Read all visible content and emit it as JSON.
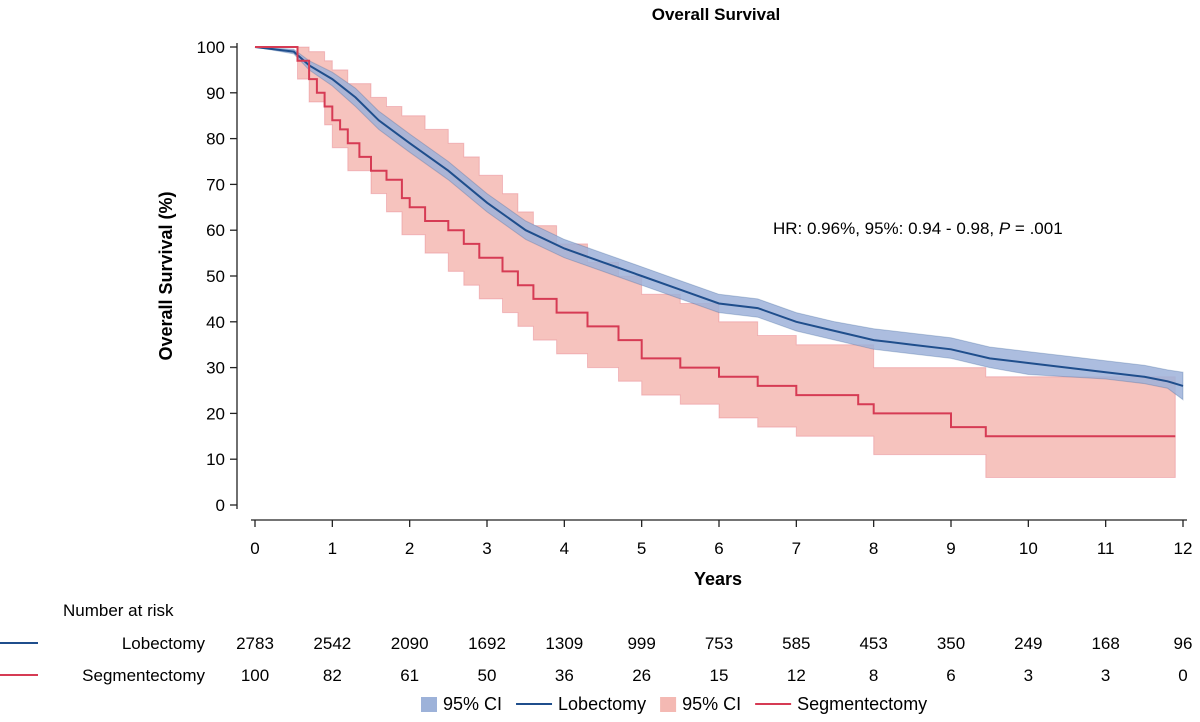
{
  "chart_data": {
    "type": "line",
    "title": "Overall Survival",
    "xlabel": "Years",
    "ylabel": "Overall Survival (%)",
    "xlim": [
      0,
      12
    ],
    "ylim": [
      0,
      100
    ],
    "xticks": [
      0,
      1,
      2,
      3,
      4,
      5,
      6,
      7,
      8,
      9,
      10,
      11,
      12
    ],
    "yticks": [
      0,
      10,
      20,
      30,
      40,
      50,
      60,
      70,
      80,
      90,
      100
    ],
    "grid": false,
    "annotation": {
      "prefix": "HR: 0.96%, 95%: 0.94 - 0.98, ",
      "p_symbol": "P",
      "suffix": " = .001"
    },
    "series": [
      {
        "name": "Lobectomy",
        "color": "#1f4e8c",
        "ci_color": "#9db2d9",
        "step": false,
        "points": [
          [
            0,
            100
          ],
          [
            0.5,
            99
          ],
          [
            0.7,
            96
          ],
          [
            1,
            93
          ],
          [
            1.3,
            89
          ],
          [
            1.6,
            84
          ],
          [
            2,
            79
          ],
          [
            2.5,
            73
          ],
          [
            3,
            66
          ],
          [
            3.5,
            60
          ],
          [
            4,
            56
          ],
          [
            4.5,
            53
          ],
          [
            5,
            50
          ],
          [
            5.5,
            47
          ],
          [
            6,
            44
          ],
          [
            6.5,
            43
          ],
          [
            7,
            40
          ],
          [
            7.5,
            38
          ],
          [
            8,
            36
          ],
          [
            8.5,
            35
          ],
          [
            9,
            34
          ],
          [
            9.5,
            32
          ],
          [
            10,
            31
          ],
          [
            10.5,
            30
          ],
          [
            11,
            29
          ],
          [
            11.5,
            28
          ],
          [
            11.8,
            27
          ],
          [
            12,
            26
          ]
        ],
        "ci_upper": [
          [
            0,
            100
          ],
          [
            0.5,
            99.5
          ],
          [
            0.7,
            97
          ],
          [
            1,
            94.5
          ],
          [
            1.3,
            91
          ],
          [
            1.6,
            86
          ],
          [
            2,
            81
          ],
          [
            2.5,
            75
          ],
          [
            3,
            68
          ],
          [
            3.5,
            62
          ],
          [
            4,
            58
          ],
          [
            4.5,
            55
          ],
          [
            5,
            52
          ],
          [
            5.5,
            49
          ],
          [
            6,
            46
          ],
          [
            6.5,
            45
          ],
          [
            7,
            42
          ],
          [
            7.5,
            40
          ],
          [
            8,
            38.5
          ],
          [
            8.5,
            37.5
          ],
          [
            9,
            36.5
          ],
          [
            9.5,
            34.5
          ],
          [
            10,
            33.5
          ],
          [
            10.5,
            32.5
          ],
          [
            11,
            31.5
          ],
          [
            11.5,
            30.5
          ],
          [
            11.8,
            29.5
          ],
          [
            12,
            29
          ]
        ],
        "ci_lower": [
          [
            0,
            100
          ],
          [
            0.5,
            98.5
          ],
          [
            0.7,
            95
          ],
          [
            1,
            91.5
          ],
          [
            1.3,
            87
          ],
          [
            1.6,
            82
          ],
          [
            2,
            77
          ],
          [
            2.5,
            71
          ],
          [
            3,
            64
          ],
          [
            3.5,
            58
          ],
          [
            4,
            54
          ],
          [
            4.5,
            51
          ],
          [
            5,
            48
          ],
          [
            5.5,
            45
          ],
          [
            6,
            42
          ],
          [
            6.5,
            41
          ],
          [
            7,
            38
          ],
          [
            7.5,
            36
          ],
          [
            8,
            34
          ],
          [
            8.5,
            33
          ],
          [
            9,
            32
          ],
          [
            9.5,
            30
          ],
          [
            10,
            28.5
          ],
          [
            10.5,
            28
          ],
          [
            11,
            27.5
          ],
          [
            11.5,
            26.5
          ],
          [
            11.8,
            25.5
          ],
          [
            12,
            23
          ]
        ]
      },
      {
        "name": "Segmentectomy",
        "color": "#d63b54",
        "ci_color": "#f4b9b3",
        "step": true,
        "points": [
          [
            0,
            100
          ],
          [
            0.5,
            100
          ],
          [
            0.55,
            97
          ],
          [
            0.7,
            93
          ],
          [
            0.8,
            90
          ],
          [
            0.9,
            87
          ],
          [
            1.0,
            84
          ],
          [
            1.1,
            82
          ],
          [
            1.2,
            79
          ],
          [
            1.35,
            76
          ],
          [
            1.5,
            73
          ],
          [
            1.7,
            71
          ],
          [
            1.9,
            67
          ],
          [
            2.0,
            65
          ],
          [
            2.2,
            62
          ],
          [
            2.5,
            60
          ],
          [
            2.7,
            57
          ],
          [
            2.9,
            54
          ],
          [
            3.2,
            51
          ],
          [
            3.4,
            48
          ],
          [
            3.6,
            45
          ],
          [
            3.9,
            42
          ],
          [
            4.3,
            39
          ],
          [
            4.7,
            36
          ],
          [
            5.0,
            32
          ],
          [
            5.5,
            30
          ],
          [
            6.0,
            28
          ],
          [
            6.5,
            26
          ],
          [
            7.0,
            24
          ],
          [
            7.8,
            22
          ],
          [
            8.0,
            20
          ],
          [
            9.0,
            17
          ],
          [
            9.45,
            15
          ],
          [
            11.9,
            15
          ]
        ],
        "ci_upper": [
          [
            0,
            100
          ],
          [
            0.5,
            100
          ],
          [
            0.55,
            100
          ],
          [
            0.7,
            99
          ],
          [
            0.9,
            97
          ],
          [
            1.0,
            95
          ],
          [
            1.2,
            92
          ],
          [
            1.5,
            89
          ],
          [
            1.7,
            87
          ],
          [
            1.9,
            85
          ],
          [
            2.2,
            82
          ],
          [
            2.5,
            79
          ],
          [
            2.7,
            76
          ],
          [
            2.9,
            72
          ],
          [
            3.2,
            68
          ],
          [
            3.4,
            64
          ],
          [
            3.6,
            61
          ],
          [
            3.9,
            57
          ],
          [
            4.3,
            53
          ],
          [
            4.7,
            50
          ],
          [
            5.0,
            46
          ],
          [
            5.5,
            44
          ],
          [
            6.0,
            40
          ],
          [
            6.5,
            37
          ],
          [
            7.0,
            35
          ],
          [
            8.0,
            30
          ],
          [
            9.45,
            28
          ],
          [
            11.9,
            28
          ]
        ],
        "ci_lower": [
          [
            0,
            100
          ],
          [
            0.5,
            100
          ],
          [
            0.55,
            93
          ],
          [
            0.7,
            88
          ],
          [
            0.9,
            83
          ],
          [
            1.0,
            78
          ],
          [
            1.2,
            73
          ],
          [
            1.5,
            68
          ],
          [
            1.7,
            64
          ],
          [
            1.9,
            59
          ],
          [
            2.2,
            55
          ],
          [
            2.5,
            51
          ],
          [
            2.7,
            48
          ],
          [
            2.9,
            45
          ],
          [
            3.2,
            42
          ],
          [
            3.4,
            39
          ],
          [
            3.6,
            36
          ],
          [
            3.9,
            33
          ],
          [
            4.3,
            30
          ],
          [
            4.7,
            27
          ],
          [
            5.0,
            24
          ],
          [
            5.5,
            22
          ],
          [
            6.0,
            19
          ],
          [
            6.5,
            17
          ],
          [
            7.0,
            15
          ],
          [
            8.0,
            11
          ],
          [
            9.45,
            6
          ],
          [
            11.9,
            6
          ]
        ]
      }
    ],
    "risk_table": {
      "heading": "Number at risk",
      "times": [
        0,
        1,
        2,
        3,
        4,
        5,
        6,
        7,
        8,
        9,
        10,
        11,
        12
      ],
      "rows": [
        {
          "name": "Lobectomy",
          "color": "#1f4e8c",
          "values": [
            "2783",
            "2542",
            "2090",
            "1692",
            "1309",
            "999",
            "753",
            "585",
            "453",
            "350",
            "249",
            "168",
            "96"
          ]
        },
        {
          "name": "Segmentectomy",
          "color": "#d63b54",
          "values": [
            "100",
            "82",
            "61",
            "50",
            "36",
            "26",
            "15",
            "12",
            "8",
            "6",
            "3",
            "3",
            "0"
          ]
        }
      ]
    },
    "legend": {
      "placement": "bottom",
      "items": [
        {
          "kind": "band",
          "label": "95% CI",
          "color": "#9db2d9"
        },
        {
          "kind": "line",
          "label": "Lobectomy",
          "color": "#1f4e8c"
        },
        {
          "kind": "band",
          "label": "95% CI",
          "color": "#f4b9b3"
        },
        {
          "kind": "line",
          "label": "Segmentectomy",
          "color": "#d63b54"
        }
      ]
    }
  }
}
